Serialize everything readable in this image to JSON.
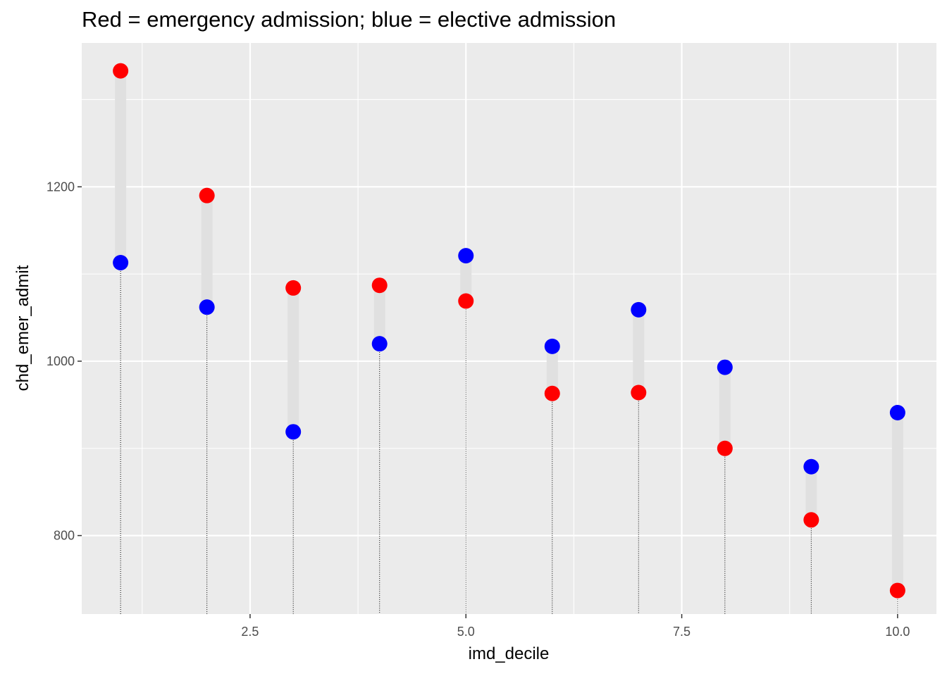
{
  "chart_data": {
    "type": "scatter",
    "title": "Red = emergency admission; blue = elective admission",
    "xlabel": "imd_decile",
    "ylabel": "chd_emer_admit",
    "xlim": [
      0.55,
      10.45
    ],
    "ylim": [
      710,
      1365
    ],
    "x_ticks": [
      2.5,
      5.0,
      7.5,
      10.0
    ],
    "x_tick_labels": [
      "2.5",
      "5.0",
      "7.5",
      "10.0"
    ],
    "y_ticks": [
      800,
      1000,
      1200
    ],
    "y_tick_labels": [
      "800",
      "1000",
      "1200"
    ],
    "grid": true,
    "legend": "none",
    "series": [
      {
        "name": "emergency admission",
        "color": "#ff0000",
        "x": [
          1,
          2,
          3,
          4,
          5,
          6,
          7,
          8,
          9,
          10
        ],
        "values": [
          1333,
          1190,
          1084,
          1087,
          1069,
          963,
          964,
          900,
          818,
          737
        ]
      },
      {
        "name": "elective admission",
        "color": "#0000ff",
        "x": [
          1,
          2,
          3,
          4,
          5,
          6,
          7,
          8,
          9,
          10
        ],
        "values": [
          1113,
          1062,
          919,
          1020,
          1121,
          1017,
          1059,
          993,
          879,
          941
        ]
      }
    ],
    "colors": {
      "panel_background": "#ebebeb",
      "grid_major": "#ffffff",
      "segment": "#e0e0e0",
      "emergency": "#ff0000",
      "elective": "#0000ff"
    }
  }
}
